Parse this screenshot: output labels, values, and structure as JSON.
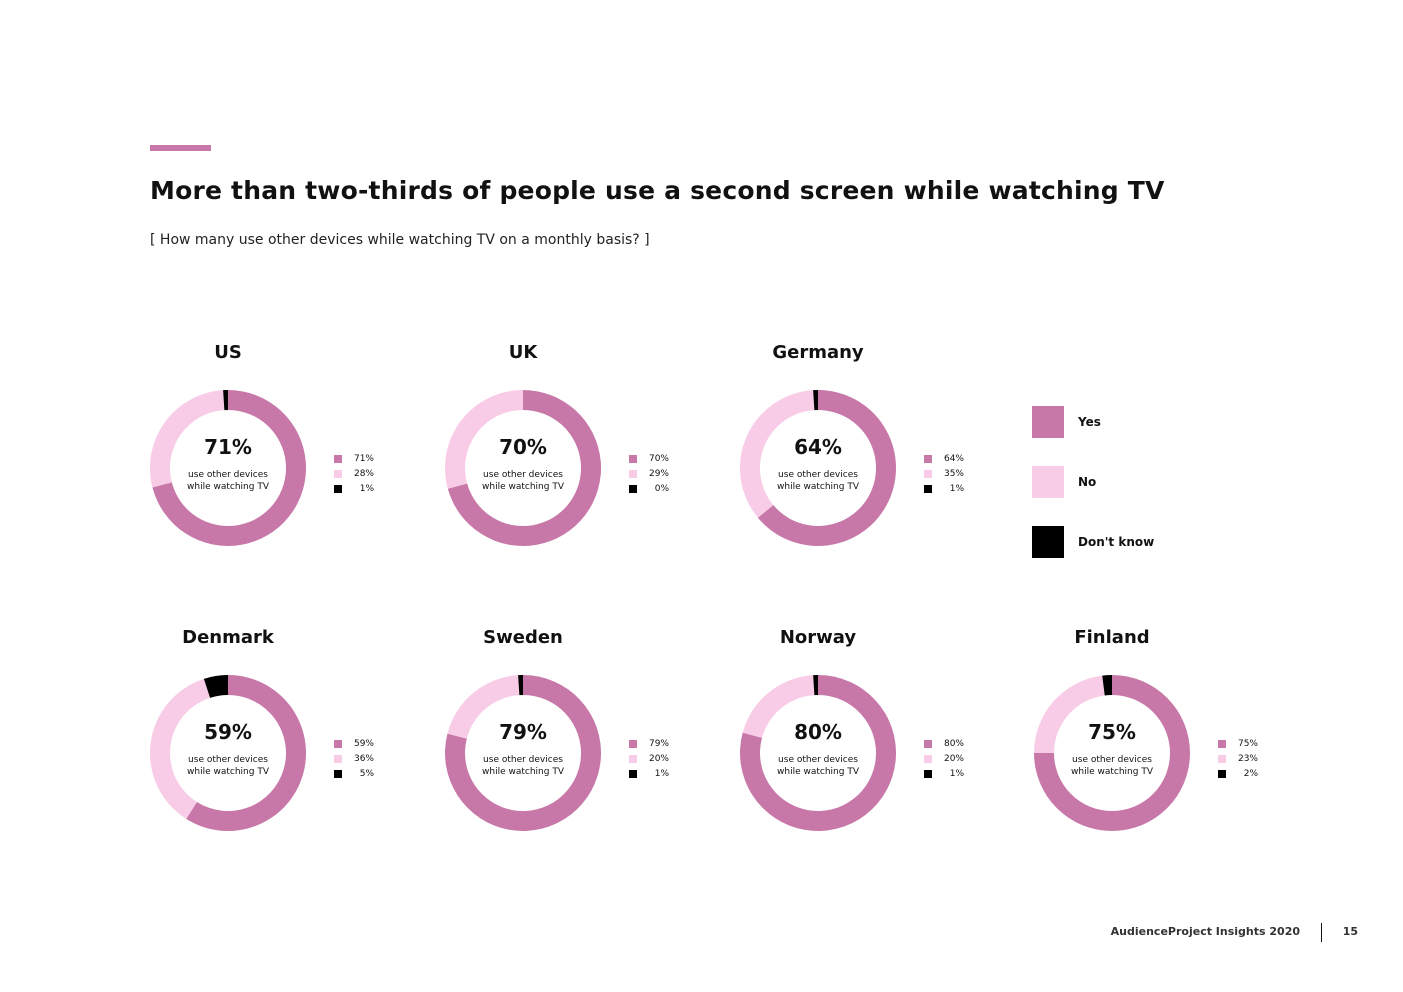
{
  "header": {
    "title": "More than two-thirds of people use a second screen while watching TV",
    "subtitle": "[ How many use other devices while watching TV on a monthly basis? ]"
  },
  "colors": {
    "accent": "#c878a8",
    "yes": "#c878a8",
    "no": "#f8cce6",
    "dont_know": "#000000"
  },
  "legend": {
    "items": [
      {
        "label": "Yes",
        "color": "#c878a8"
      },
      {
        "label": "No",
        "color": "#f8cce6"
      },
      {
        "label": "Don't know",
        "color": "#000000"
      }
    ]
  },
  "center_label": "use other devices while watching TV",
  "chart_data": [
    {
      "type": "pie",
      "title": "US",
      "categories": [
        "Yes",
        "No",
        "Don't know"
      ],
      "values": [
        71,
        28,
        1
      ],
      "value_labels": [
        "71%",
        "28%",
        "1%"
      ],
      "center_value": "71%"
    },
    {
      "type": "pie",
      "title": "UK",
      "categories": [
        "Yes",
        "No",
        "Don't know"
      ],
      "values": [
        70,
        29,
        0
      ],
      "value_labels": [
        "70%",
        "29%",
        "0%"
      ],
      "center_value": "70%"
    },
    {
      "type": "pie",
      "title": "Germany",
      "categories": [
        "Yes",
        "No",
        "Don't know"
      ],
      "values": [
        64,
        35,
        1
      ],
      "value_labels": [
        "64%",
        "35%",
        "1%"
      ],
      "center_value": "64%"
    },
    {
      "type": "pie",
      "title": "Denmark",
      "categories": [
        "Yes",
        "No",
        "Don't know"
      ],
      "values": [
        59,
        36,
        5
      ],
      "value_labels": [
        "59%",
        "36%",
        "5%"
      ],
      "center_value": "59%"
    },
    {
      "type": "pie",
      "title": "Sweden",
      "categories": [
        "Yes",
        "No",
        "Don't know"
      ],
      "values": [
        79,
        20,
        1
      ],
      "value_labels": [
        "79%",
        "20%",
        "1%"
      ],
      "center_value": "79%"
    },
    {
      "type": "pie",
      "title": "Norway",
      "categories": [
        "Yes",
        "No",
        "Don't know"
      ],
      "values": [
        80,
        20,
        1
      ],
      "value_labels": [
        "80%",
        "20%",
        "1%"
      ],
      "center_value": "80%"
    },
    {
      "type": "pie",
      "title": "Finland",
      "categories": [
        "Yes",
        "No",
        "Don't know"
      ],
      "values": [
        75,
        23,
        2
      ],
      "value_labels": [
        "75%",
        "23%",
        "2%"
      ],
      "center_value": "75%"
    }
  ],
  "footer": {
    "source": "AudienceProject Insights 2020",
    "page_number": "15"
  }
}
